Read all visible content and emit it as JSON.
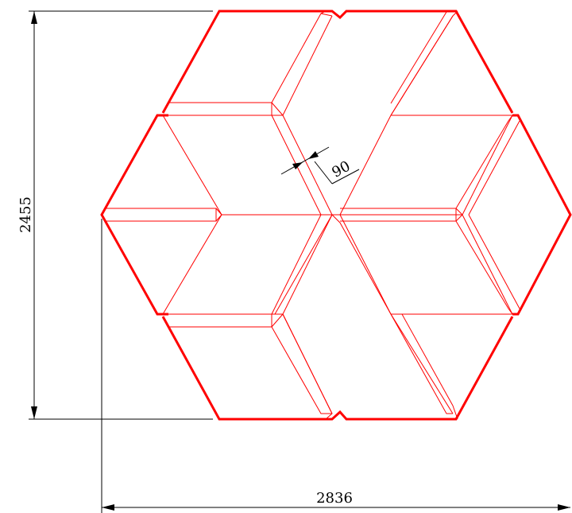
{
  "colors": {
    "outline": "#ff0000",
    "geometry": "#ff0000",
    "dimension": "#000000"
  },
  "dimensions": {
    "height_label": "2455",
    "width_label": "2836",
    "detail_label": "90"
  }
}
